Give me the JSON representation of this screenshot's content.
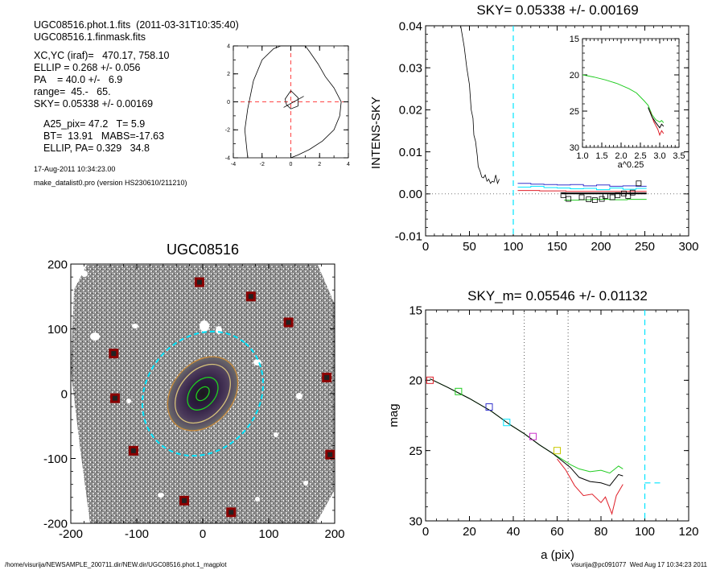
{
  "header": {
    "lines": [
      "UGC08516.phot.1.fits  (2011-03-31T10:35:40)",
      "UGC08516.1.finmask.fits",
      "XC,YC (iraf)=   470.17, 758.10",
      "ELLIP = 0.268 +/- 0.056",
      "PA    = 40.0 +/-   6.9",
      "range=  45.-   65.",
      "SKY= 0.05338 +/- 0.00169",
      "A25_pix= 47.2   T= 5.9",
      "BT=  13.91   MABS=-17.63",
      "ELLIP, PA= 0.329   34.8"
    ],
    "date": "17-Aug-2011 10:34:23.00",
    "program": "make_datalist0.pro (version HS230610/211210)"
  },
  "footer": {
    "left": "/home/visurija/NEWSAMPLE_200711.dir/NEW.dir/UGC08516.phot.1_magplot",
    "right": "visurija@pc091077  Wed Aug 17 10:34:23 2011"
  },
  "colors": {
    "cyan": "#00e5ff",
    "red": "#e0202a",
    "green": "#22cc22",
    "blue": "#3333cc",
    "magenta": "#cc33cc",
    "darkred": "#8b0000"
  },
  "chart_data": [
    {
      "id": "contour",
      "type": "line",
      "xlim": [
        -4,
        4
      ],
      "ylim": [
        -4,
        4
      ],
      "x_ticks": [
        "-4",
        "-2",
        "0",
        "2",
        "4"
      ],
      "y_ticks": [
        "-4",
        "-2",
        "0",
        "2",
        "4"
      ],
      "outer_contour": [
        [
          -3,
          -4
        ],
        [
          -3.2,
          -2
        ],
        [
          -3,
          -0.5
        ],
        [
          -2.6,
          1.5
        ],
        [
          -2,
          3
        ],
        [
          -1.2,
          3.8
        ],
        [
          -0.7,
          4
        ],
        [
          1,
          4
        ],
        [
          1.3,
          3.6
        ],
        [
          1.9,
          2.7
        ],
        [
          2.4,
          1.8
        ],
        [
          3,
          1
        ],
        [
          3.5,
          0
        ],
        [
          3.4,
          -1
        ],
        [
          3,
          -2
        ],
        [
          2.2,
          -2.8
        ],
        [
          1.3,
          -3.4
        ],
        [
          0.5,
          -3.8
        ],
        [
          0,
          -4
        ]
      ],
      "inner_contour": [
        [
          0,
          0.8
        ],
        [
          0.5,
          0.3
        ],
        [
          0.5,
          -0.3
        ],
        [
          0,
          -0.5
        ],
        [
          -0.3,
          -0.2
        ],
        [
          -0.4,
          0.2
        ],
        [
          0,
          0.8
        ]
      ],
      "inner_cross": [
        [
          -0.5,
          -0.4
        ],
        [
          0.9,
          0.4
        ]
      ]
    },
    {
      "id": "sky",
      "type": "line",
      "title": "SKY= 0.05338 +/- 0.00169",
      "ylabel": "INTENS-SKY",
      "xlim": [
        0,
        300
      ],
      "ylim": [
        -0.01,
        0.04
      ],
      "x_ticks": [
        "0",
        "50",
        "100",
        "150",
        "200",
        "250",
        "300"
      ],
      "y_ticks": [
        "-0.01",
        "0.00",
        "0.01",
        "0.02",
        "0.03",
        "0.04"
      ],
      "vline": 100,
      "profile": [
        [
          40,
          0.04
        ],
        [
          44,
          0.035
        ],
        [
          47,
          0.03
        ],
        [
          50,
          0.026
        ],
        [
          52,
          0.02
        ],
        [
          54,
          0.018
        ],
        [
          55,
          0.014
        ],
        [
          57,
          0.0125
        ],
        [
          59,
          0.009
        ],
        [
          60,
          0.0065
        ],
        [
          62,
          0.0055
        ],
        [
          64,
          0.004
        ],
        [
          66,
          0.0038
        ],
        [
          68,
          0.0045
        ],
        [
          70,
          0.003
        ],
        [
          72,
          0.0035
        ],
        [
          74,
          0.0025
        ],
        [
          76,
          0.003
        ],
        [
          78,
          0.0028
        ],
        [
          80,
          0.0045
        ],
        [
          82,
          0.0025
        ],
        [
          84,
          0.0035
        ]
      ],
      "steps_blue": [
        [
          105,
          0.0025
        ],
        [
          120,
          0.0023
        ],
        [
          135,
          0.0022
        ],
        [
          150,
          0.0021
        ],
        [
          165,
          0.0022
        ],
        [
          180,
          0.0019
        ],
        [
          195,
          0.0021
        ],
        [
          210,
          0.0018
        ],
        [
          225,
          0.0019
        ],
        [
          240,
          0.0018
        ],
        [
          252,
          0.0018
        ]
      ],
      "steps_cyan": [
        [
          105,
          0.0016
        ],
        [
          120,
          0.0018
        ],
        [
          135,
          0.0015
        ],
        [
          150,
          0.0014
        ],
        [
          165,
          0.0012
        ],
        [
          180,
          0.0013
        ],
        [
          195,
          0.001
        ],
        [
          210,
          0.0014
        ],
        [
          225,
          0.0011
        ],
        [
          240,
          0.0013
        ],
        [
          252,
          0.0013
        ]
      ],
      "steps_green": [
        [
          158,
          -0.0015
        ],
        [
          175,
          -0.0014
        ],
        [
          190,
          -0.0013
        ],
        [
          210,
          -0.0014
        ],
        [
          230,
          -0.0013
        ],
        [
          252,
          -0.0013
        ]
      ],
      "steps_red": [
        [
          105,
          0.0008
        ],
        [
          130,
          0.0007
        ],
        [
          160,
          0.0006
        ],
        [
          200,
          0.0006
        ],
        [
          252,
          0.0006
        ]
      ],
      "black_line": [
        [
          155,
          0.0001
        ],
        [
          252,
          0.0001
        ]
      ],
      "squares": [
        [
          157,
          -0.0003
        ],
        [
          163,
          -0.0012
        ],
        [
          178,
          -0.0008
        ],
        [
          186,
          -0.0013
        ],
        [
          193,
          -0.0015
        ],
        [
          201,
          -0.0012
        ],
        [
          205,
          -0.0005
        ],
        [
          213,
          -0.0008
        ],
        [
          219,
          -0.0003
        ],
        [
          226,
          0.0001
        ],
        [
          231,
          -0.0005
        ],
        [
          236,
          0.0003
        ],
        [
          243,
          0.0025
        ]
      ],
      "inset": {
        "xlabel": "a^0.25",
        "xlim": [
          1.0,
          3.5
        ],
        "ylim": [
          30,
          15
        ],
        "x_ticks": [
          "1.0",
          "1.5",
          "2.0",
          "2.5",
          "3.0",
          "3.5"
        ],
        "y_ticks": [
          "15",
          "20",
          "25",
          "30"
        ],
        "green": [
          [
            1.0,
            20
          ],
          [
            1.3,
            20.3
          ],
          [
            1.6,
            20.7
          ],
          [
            1.9,
            21.2
          ],
          [
            2.2,
            21.9
          ],
          [
            2.4,
            22.5
          ],
          [
            2.6,
            23.6
          ],
          [
            2.7,
            24.2
          ],
          [
            2.8,
            25.5
          ],
          [
            2.9,
            26.2
          ],
          [
            3.0,
            26.5
          ],
          [
            3.05,
            26.3
          ],
          [
            3.1,
            26.6
          ]
        ],
        "black": [
          [
            2.7,
            24.5
          ],
          [
            2.8,
            25.8
          ],
          [
            2.9,
            26.6
          ],
          [
            3.0,
            27.3
          ],
          [
            3.05,
            26.8
          ],
          [
            3.1,
            27.1
          ]
        ],
        "red": [
          [
            2.75,
            25
          ],
          [
            2.85,
            26.5
          ],
          [
            2.95,
            27.5
          ],
          [
            3.0,
            28.3
          ],
          [
            3.05,
            27.7
          ],
          [
            3.1,
            28.1
          ]
        ]
      }
    },
    {
      "id": "image",
      "type": "scatter",
      "title": "UGC08516",
      "xlim": [
        -200,
        200
      ],
      "ylim": [
        -200,
        200
      ],
      "x_ticks": [
        "-200",
        "-100",
        "0",
        "100",
        "200"
      ],
      "y_ticks": [
        "-200",
        "-100",
        "0",
        "100",
        "200"
      ],
      "masked_sources": [
        [
          -5,
          172
        ],
        [
          73,
          150
        ],
        [
          130,
          110
        ],
        [
          -135,
          62
        ],
        [
          188,
          25
        ],
        [
          -133,
          -7
        ],
        [
          -105,
          -88
        ],
        [
          193,
          -94
        ],
        [
          -28,
          -165
        ],
        [
          43,
          -183
        ]
      ],
      "ellipses": [
        {
          "name": "sky-annulus",
          "a": 100,
          "b": 85,
          "pa": 40,
          "color": "cyan",
          "dashed": true
        },
        {
          "name": "outer-isophote",
          "a": 62,
          "b": 46,
          "pa": 40,
          "color": "#c98a3a"
        },
        {
          "name": "mid-isophote",
          "a": 50,
          "b": 35,
          "pa": 40,
          "color": "#d6c27a"
        },
        {
          "name": "inner-isophote",
          "a": 28,
          "b": 19,
          "pa": 40,
          "color": "#20d020"
        },
        {
          "name": "core-isophote",
          "a": 12,
          "b": 8,
          "pa": 40,
          "color": "#20d020"
        }
      ]
    },
    {
      "id": "mag",
      "type": "line",
      "title": "SKY_m=  0.05546 +/- 0.01132",
      "xlabel": "a (pix)",
      "ylabel": "mag",
      "xlim": [
        0,
        120
      ],
      "ylim": [
        30,
        15
      ],
      "x_ticks": [
        "0",
        "20",
        "40",
        "60",
        "80",
        "100",
        "120"
      ],
      "y_ticks": [
        "15",
        "20",
        "25",
        "30"
      ],
      "dotted_vlines": [
        45,
        65
      ],
      "cyan_vline": 100,
      "cyan_tail": [
        [
          100,
          27.3
        ],
        [
          108,
          27.3
        ]
      ],
      "green": [
        [
          2,
          19.9
        ],
        [
          10,
          20.5
        ],
        [
          20,
          21.3
        ],
        [
          30,
          22.2
        ],
        [
          38,
          23.1
        ],
        [
          45,
          23.8
        ],
        [
          52,
          24.6
        ],
        [
          58,
          25.2
        ],
        [
          62,
          25.6
        ],
        [
          66,
          26
        ],
        [
          70,
          26.3
        ],
        [
          75,
          26.5
        ],
        [
          80,
          26.4
        ],
        [
          84,
          26.6
        ],
        [
          88,
          26.1
        ],
        [
          90,
          26.3
        ]
      ],
      "black": [
        [
          2,
          19.9
        ],
        [
          10,
          20.5
        ],
        [
          20,
          21.3
        ],
        [
          30,
          22.2
        ],
        [
          38,
          23.1
        ],
        [
          45,
          23.8
        ],
        [
          52,
          24.6
        ],
        [
          58,
          25.2
        ],
        [
          62,
          25.7
        ],
        [
          66,
          26.2
        ],
        [
          70,
          26.9
        ],
        [
          75,
          27.2
        ],
        [
          80,
          27.3
        ],
        [
          84,
          27.5
        ],
        [
          88,
          26.7
        ],
        [
          90,
          26.8
        ]
      ],
      "red": [
        [
          60,
          25.6
        ],
        [
          64,
          26.4
        ],
        [
          68,
          27.5
        ],
        [
          72,
          28.2
        ],
        [
          76,
          28.1
        ],
        [
          80,
          28.7
        ],
        [
          82,
          28.3
        ],
        [
          85,
          29.5
        ],
        [
          87,
          28.2
        ],
        [
          90,
          27.4
        ]
      ],
      "squares": [
        {
          "x": 2,
          "y": 20.0,
          "c": "red"
        },
        {
          "x": 15,
          "y": 20.8,
          "c": "green"
        },
        {
          "x": 29,
          "y": 21.9,
          "c": "blue"
        },
        {
          "x": 37,
          "y": 23.0,
          "c": "cyan"
        },
        {
          "x": 49,
          "y": 24.0,
          "c": "magenta"
        },
        {
          "x": 60,
          "y": 25.0,
          "c": "#c9c900"
        }
      ]
    }
  ]
}
